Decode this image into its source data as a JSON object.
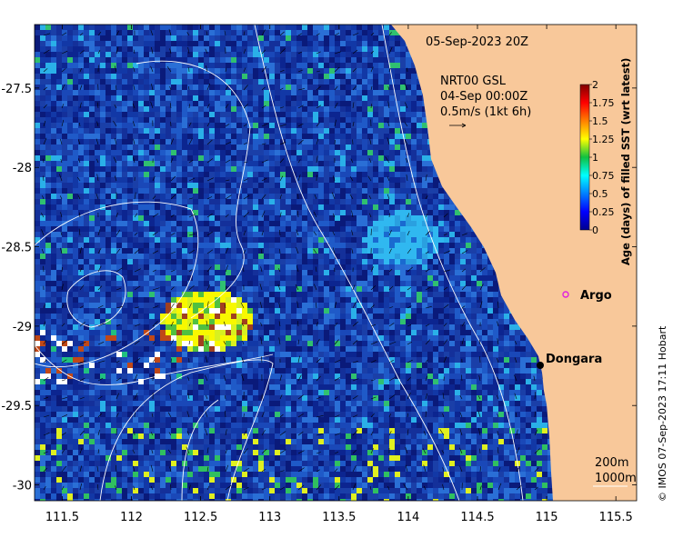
{
  "chart_data": {
    "type": "heatmap",
    "title": "05-Sep-2023 20Z",
    "product": "NRT00 GSL",
    "current_time": "04-Sep 00:00Z",
    "vector_scale": "0.5m/s (1kt 6h)",
    "xlim": [
      111.3,
      115.65
    ],
    "ylim": [
      -30.1,
      -27.1
    ],
    "x_ticks": [
      "111.5",
      "112",
      "112.5",
      "113",
      "113.5",
      "114",
      "114.5",
      "115",
      "115.5"
    ],
    "y_ticks": [
      "-27.5",
      "-28",
      "-28.5",
      "-29",
      "-29.5",
      "-30"
    ],
    "colorbar": {
      "label": "Age (days) of filled SST (wrt latest)",
      "range": [
        0,
        2
      ],
      "ticks": [
        "0",
        "0.25",
        "0.5",
        "0.75",
        "1",
        "1.25",
        "1.5",
        "1.75",
        "2"
      ]
    },
    "isobaths": [
      "200m",
      "1000m"
    ],
    "places": [
      {
        "name": "Argo",
        "lon": 115.12,
        "lat": -28.8,
        "marker": "circle",
        "color": "#e020e0"
      },
      {
        "name": "Dongara",
        "lon": 114.93,
        "lat": -29.25,
        "marker": "dot",
        "color": "#000000"
      }
    ],
    "credit": "© IMOS 07-Sep-2023 17:11 Hobart"
  },
  "colors": {
    "land": "#f8c89a",
    "background_ocean": "#1a3fa8",
    "colormap_low": "#00008c",
    "colormap_high": "#8c0000"
  }
}
